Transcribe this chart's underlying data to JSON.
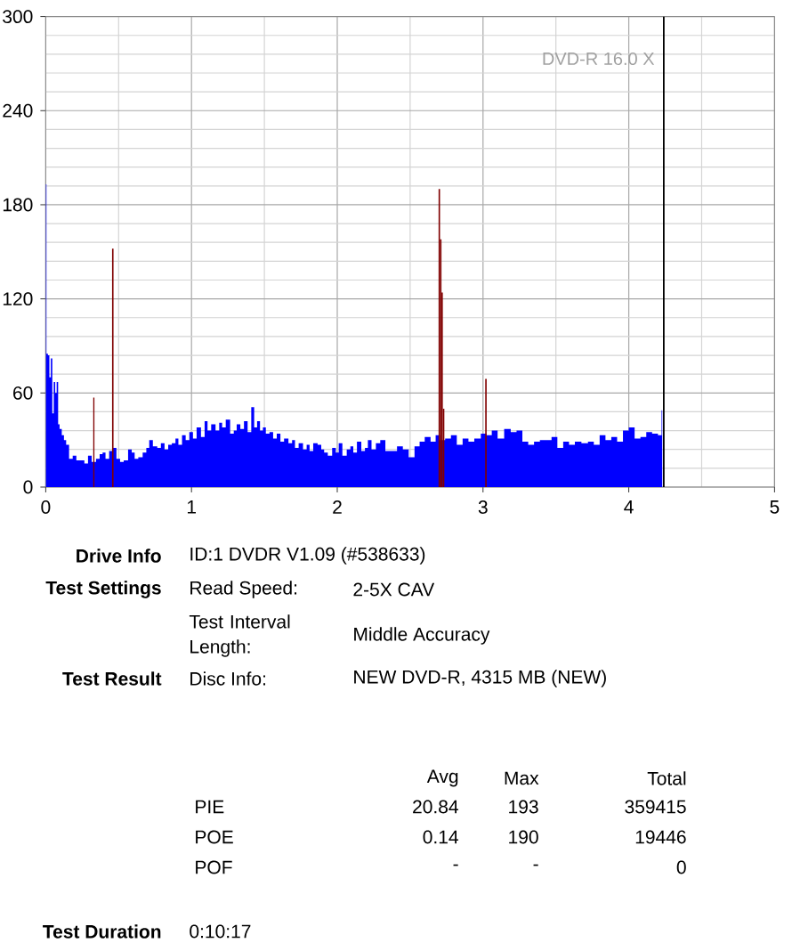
{
  "chart_data": {
    "type": "area",
    "series": [
      {
        "color": "#0000ff",
        "x": [
          0.0,
          0.01,
          0.02,
          0.03,
          0.04,
          0.05,
          0.06,
          0.07,
          0.08,
          0.09,
          0.1,
          0.12,
          0.13,
          0.15,
          0.17,
          0.2,
          0.22,
          0.25,
          0.28,
          0.3,
          0.33,
          0.36,
          0.38,
          0.4,
          0.42,
          0.45,
          0.47,
          0.5,
          0.52,
          0.55,
          0.58,
          0.6,
          0.62,
          0.65,
          0.68,
          0.7,
          0.72,
          0.75,
          0.78,
          0.8,
          0.83,
          0.85,
          0.88,
          0.9,
          0.92,
          0.95,
          0.97,
          1.0,
          1.02,
          1.05,
          1.08,
          1.1,
          1.12,
          1.15,
          1.18,
          1.2,
          1.22,
          1.25,
          1.28,
          1.3,
          1.32,
          1.35,
          1.37,
          1.4,
          1.42,
          1.44,
          1.46,
          1.48,
          1.5,
          1.52,
          1.55,
          1.57,
          1.6,
          1.62,
          1.65,
          1.68,
          1.7,
          1.72,
          1.75,
          1.78,
          1.8,
          1.82,
          1.85,
          1.88,
          1.9,
          1.92,
          1.95,
          1.98,
          2.0,
          2.02,
          2.05,
          2.08,
          2.1,
          2.12,
          2.15,
          2.18,
          2.2,
          2.22,
          2.25,
          2.28,
          2.31,
          2.35,
          2.39,
          2.43,
          2.47,
          2.51,
          2.55,
          2.58,
          2.62,
          2.66,
          2.69,
          2.72,
          2.76,
          2.8,
          2.84,
          2.88,
          2.92,
          2.96,
          3.01,
          3.04,
          3.08,
          3.12,
          3.17,
          3.21,
          3.25,
          3.29,
          3.33,
          3.37,
          3.41,
          3.45,
          3.49,
          3.53,
          3.57,
          3.61,
          3.65,
          3.7,
          3.74,
          3.78,
          3.82,
          3.86,
          3.9,
          3.94,
          3.98,
          4.02,
          4.06,
          4.1,
          4.14,
          4.18,
          4.22,
          4.23
        ],
        "values": [
          193,
          85,
          84,
          70,
          82,
          47,
          67,
          60,
          67,
          40,
          37,
          33,
          30,
          27,
          18,
          20,
          17,
          17,
          15,
          20,
          16,
          18,
          21,
          22,
          18,
          23,
          25,
          18,
          16,
          17,
          24,
          22,
          18,
          19,
          22,
          25,
          30,
          26,
          25,
          28,
          24,
          27,
          28,
          31,
          27,
          33,
          30,
          35,
          31,
          38,
          32,
          42,
          36,
          40,
          36,
          41,
          38,
          43,
          34,
          36,
          40,
          37,
          42,
          35,
          51,
          38,
          42,
          36,
          38,
          34,
          35,
          31,
          34,
          29,
          31,
          28,
          30,
          25,
          28,
          24,
          27,
          23,
          28,
          27,
          24,
          22,
          20,
          25,
          22,
          28,
          20,
          24,
          26,
          22,
          29,
          23,
          25,
          30,
          24,
          28,
          30,
          23,
          23,
          26,
          24,
          19,
          26,
          29,
          32,
          29,
          33,
          30,
          31,
          33,
          27,
          31,
          29,
          31,
          34,
          33,
          36,
          31,
          37,
          35,
          36,
          29,
          27,
          29,
          30,
          30,
          32,
          25,
          29,
          27,
          29,
          28,
          29,
          27,
          33,
          30,
          32,
          29,
          36,
          38,
          31,
          32,
          35,
          34,
          33,
          49
        ]
      },
      {
        "type": "bar",
        "color": "#800000",
        "x": [
          0.33,
          0.46,
          2.7,
          2.71,
          2.72,
          2.73,
          3.02
        ],
        "values": [
          57,
          152,
          190,
          158,
          124,
          50,
          69
        ]
      }
    ],
    "xlim": [
      0,
      5
    ],
    "xticks": [
      0,
      1,
      2,
      3,
      4,
      5
    ],
    "ylim": [
      0,
      300
    ],
    "yticks": [
      0,
      60,
      120,
      180,
      240,
      300
    ],
    "grid": true,
    "ref_lines": [
      {
        "axis": "x",
        "value": 4.24,
        "color": "#000000"
      }
    ],
    "annotations": [
      "Drive Info",
      "ID:1 DVDR V1.09 (#538633)",
      "Test Settings",
      "Read Speed:",
      "2-5X CAV",
      "Test Interval Length:",
      "Middle Accuracy",
      "Test Result",
      "Disc Info:",
      "NEW DVD-R, 4315 MB (NEW)",
      "Avg",
      "Max",
      "Total",
      "PIE",
      "20.84",
      "193",
      "359415",
      "POE",
      "0.14",
      "190",
      "19446",
      "POF",
      "-",
      "-",
      "0",
      "Test Duration",
      "0:10:17",
      "DVD-R 16.0 X"
    ]
  }
}
